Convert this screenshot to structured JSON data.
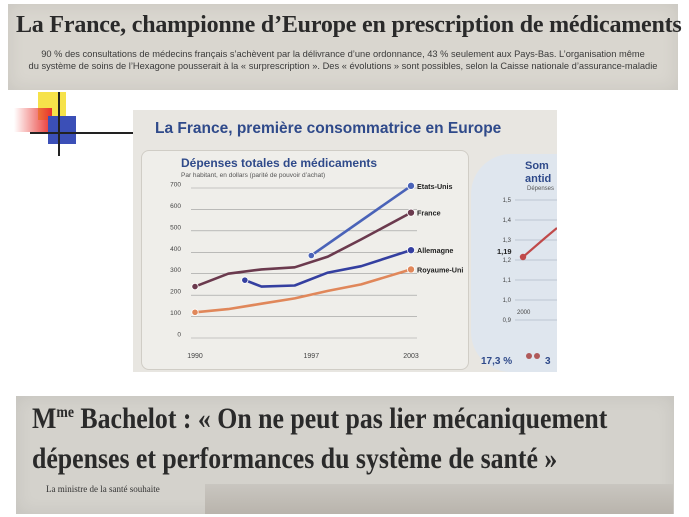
{
  "article1": {
    "headline": "La France, championne d’Europe en prescription de médicaments",
    "subtext_line1": "90 % des consultations de médecins français s’achèvent par la délivrance d’une ordonnance, 43 % seulement aux Pays-Bas. L’organisation même",
    "subtext_line2": "du système de soins de l’Hexagone pousserait à la « surprescription ». Des « évolutions » sont possibles, selon la Caisse nationale d’assurance-maladie"
  },
  "chart_section": {
    "title": "La France, première consommatrice en Europe",
    "side_title_line1": "Som",
    "side_title_line2": "antid",
    "side_sub": "Dépenses",
    "side_ticks": [
      "1,5",
      "1,4",
      "1,3",
      "1,2",
      "1,1",
      "1,0",
      "0,9"
    ],
    "side_value": "1,19",
    "side_x": "2000",
    "bottom_stat": "17,3 %",
    "bottom_stat2": "3"
  },
  "chart_data": {
    "type": "line",
    "title": "Dépenses totales de médicaments",
    "subtitle": "Par habitant, en dollars (parité de pouvoir d’achat)",
    "x": [
      1990,
      1997,
      2003
    ],
    "xlim": [
      1990,
      2003
    ],
    "ylim": [
      0,
      700
    ],
    "yticks": [
      0,
      100,
      200,
      300,
      400,
      500,
      600,
      700
    ],
    "grid": true,
    "series": [
      {
        "name": "Etats-Unis",
        "color": "#4a63b8",
        "points": [
          [
            1997,
            385
          ],
          [
            2003,
            710
          ]
        ]
      },
      {
        "name": "France",
        "color": "#6b3a4e",
        "points": [
          [
            1990,
            240
          ],
          [
            1992,
            300
          ],
          [
            1994,
            320
          ],
          [
            1996,
            330
          ],
          [
            1998,
            380
          ],
          [
            2000,
            460
          ],
          [
            2003,
            585
          ]
        ]
      },
      {
        "name": "Allemagne",
        "color": "#343fa0",
        "points": [
          [
            1993,
            270
          ],
          [
            1994,
            240
          ],
          [
            1996,
            245
          ],
          [
            1998,
            305
          ],
          [
            2000,
            335
          ],
          [
            2003,
            410
          ]
        ]
      },
      {
        "name": "Royaume-Uni",
        "color": "#e0875a",
        "points": [
          [
            1990,
            120
          ],
          [
            1992,
            135
          ],
          [
            1994,
            160
          ],
          [
            1996,
            185
          ],
          [
            1998,
            220
          ],
          [
            2000,
            250
          ],
          [
            2003,
            320
          ]
        ]
      }
    ]
  },
  "article2": {
    "headline_line1_pre": "M",
    "headline_line1_sup": "me",
    "headline_line1_post": " Bachelot : « On ne peut pas lier mécaniquement",
    "headline_line2": "dépenses et performances du système de santé »",
    "caption": "La ministre de la santé souhaite"
  }
}
